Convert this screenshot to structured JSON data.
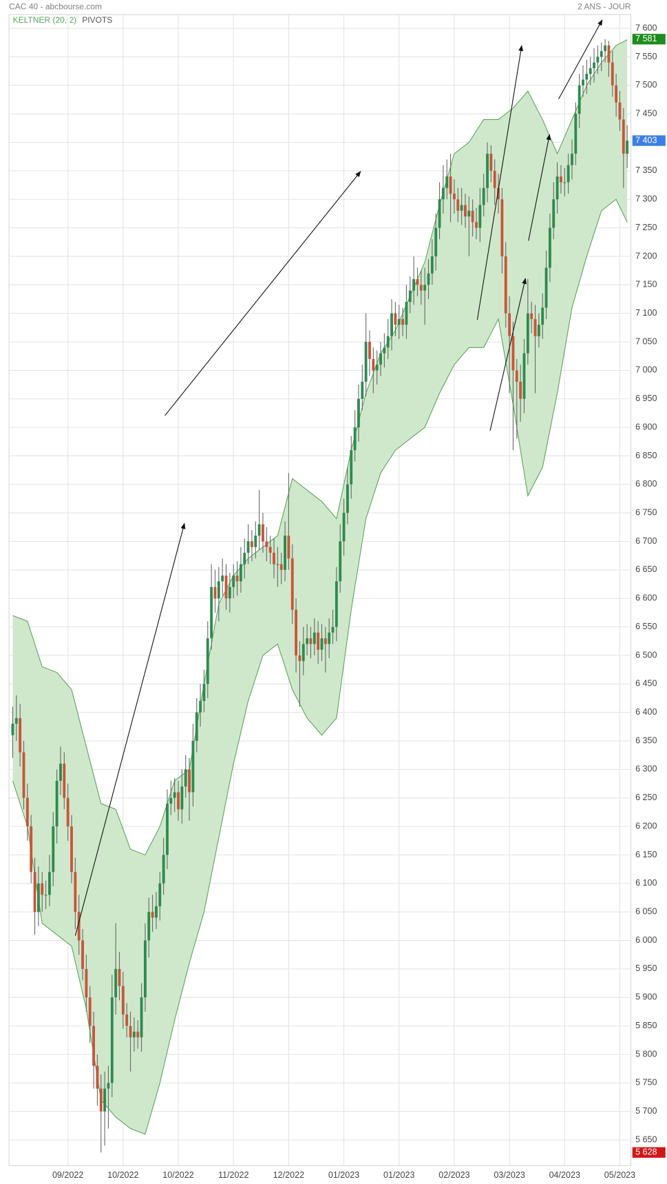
{
  "chart_data": {
    "type": "candlestick",
    "title": "CAC 40 - abcbourse.com",
    "period": "2 ANS - JOUR",
    "pivots_label": "PIVOTS",
    "up_color": "#2e8b4e",
    "down_color": "#c9553a",
    "wick_color": "#666666",
    "grid": true,
    "xlim": [
      -1,
      168
    ],
    "ylim": [
      5605,
      7624
    ],
    "xticks": [
      {
        "value": 15,
        "label": "09/2022"
      },
      {
        "value": 30,
        "label": "10/2022"
      },
      {
        "value": 45,
        "label": "10/2022"
      },
      {
        "value": 60,
        "label": "11/2022"
      },
      {
        "value": 75,
        "label": "12/2022"
      },
      {
        "value": 90,
        "label": "01/2023"
      },
      {
        "value": 105,
        "label": "01/2023"
      },
      {
        "value": 120,
        "label": "02/2023"
      },
      {
        "value": 135,
        "label": "03/2023"
      },
      {
        "value": 150,
        "label": "04/2023"
      },
      {
        "value": 165,
        "label": "05/2023"
      }
    ],
    "yticks": [
      {
        "value": 5650,
        "label": "5 650"
      },
      {
        "value": 5700,
        "label": "5 700"
      },
      {
        "value": 5750,
        "label": "5 750"
      },
      {
        "value": 5800,
        "label": "5 800"
      },
      {
        "value": 5850,
        "label": "5 850"
      },
      {
        "value": 5900,
        "label": "5 900"
      },
      {
        "value": 5950,
        "label": "5 950"
      },
      {
        "value": 6000,
        "label": "6 000"
      },
      {
        "value": 6050,
        "label": "6 050"
      },
      {
        "value": 6100,
        "label": "6 100"
      },
      {
        "value": 6150,
        "label": "6 150"
      },
      {
        "value": 6200,
        "label": "6 200"
      },
      {
        "value": 6250,
        "label": "6 250"
      },
      {
        "value": 6300,
        "label": "6 300"
      },
      {
        "value": 6350,
        "label": "6 350"
      },
      {
        "value": 6400,
        "label": "6 400"
      },
      {
        "value": 6450,
        "label": "6 450"
      },
      {
        "value": 6500,
        "label": "6 500"
      },
      {
        "value": 6550,
        "label": "6 550"
      },
      {
        "value": 6600,
        "label": "6 600"
      },
      {
        "value": 6650,
        "label": "6 650"
      },
      {
        "value": 6700,
        "label": "6 700"
      },
      {
        "value": 6750,
        "label": "6 750"
      },
      {
        "value": 6800,
        "label": "6 800"
      },
      {
        "value": 6850,
        "label": "6 850"
      },
      {
        "value": 6900,
        "label": "6 900"
      },
      {
        "value": 6950,
        "label": "6 950"
      },
      {
        "value": 7000,
        "label": "7 000"
      },
      {
        "value": 7050,
        "label": "7 050"
      },
      {
        "value": 7100,
        "label": "7 100"
      },
      {
        "value": 7150,
        "label": "7 150"
      },
      {
        "value": 7200,
        "label": "7 200"
      },
      {
        "value": 7250,
        "label": "7 250"
      },
      {
        "value": 7300,
        "label": "7 300"
      },
      {
        "value": 7350,
        "label": "7 350"
      },
      {
        "value": 7400,
        "label": "7 400"
      },
      {
        "value": 7450,
        "label": "7 450"
      },
      {
        "value": 7500,
        "label": "7 500"
      },
      {
        "value": 7550,
        "label": "7 550"
      },
      {
        "value": 7600,
        "label": "7 600"
      }
    ],
    "price_labels": [
      {
        "value": 7581,
        "label": "7 581",
        "color": "#1e8c1e"
      },
      {
        "value": 7403,
        "label": "7 403",
        "color": "#3d7ee6"
      },
      {
        "value": 5628,
        "label": "5 628",
        "color": "#d01818"
      }
    ],
    "keltner": {
      "name": "KELTNER (20, 2)",
      "color": "#5ca55c",
      "fill": "#cfe8cb",
      "x": [
        0,
        4,
        8,
        12,
        16,
        20,
        24,
        28,
        32,
        36,
        40,
        44,
        48,
        52,
        56,
        60,
        64,
        68,
        72,
        76,
        80,
        84,
        88,
        92,
        96,
        100,
        104,
        108,
        112,
        116,
        120,
        124,
        128,
        132,
        136,
        140,
        144,
        148,
        152,
        156,
        160,
        164,
        167
      ],
      "upper": [
        6570,
        6560,
        6480,
        6470,
        6440,
        6340,
        6240,
        6230,
        6160,
        6150,
        6200,
        6280,
        6300,
        6450,
        6590,
        6640,
        6670,
        6690,
        6710,
        6810,
        6790,
        6770,
        6740,
        6860,
        6960,
        7030,
        7070,
        7130,
        7190,
        7290,
        7380,
        7400,
        7440,
        7440,
        7460,
        7490,
        7440,
        7380,
        7440,
        7500,
        7540,
        7570,
        7580
      ],
      "lower": [
        6280,
        6200,
        6030,
        6010,
        5990,
        5880,
        5720,
        5690,
        5670,
        5660,
        5750,
        5860,
        5960,
        6050,
        6180,
        6310,
        6420,
        6500,
        6520,
        6440,
        6390,
        6360,
        6390,
        6580,
        6740,
        6820,
        6860,
        6880,
        6900,
        6960,
        7010,
        7040,
        7040,
        7090,
        6940,
        6780,
        6830,
        6960,
        7110,
        7200,
        7280,
        7300,
        7260
      ]
    },
    "open": [
      6360,
      6380,
      6390,
      6330,
      6250,
      6200,
      6120,
      6050,
      6100,
      6080,
      6080,
      6120,
      6200,
      6280,
      6310,
      6250,
      6200,
      6120,
      6050,
      6000,
      5950,
      5900,
      5850,
      5780,
      5740,
      5700,
      5740,
      5750,
      5900,
      5950,
      5920,
      5870,
      5850,
      5830,
      5840,
      5830,
      5900,
      6000,
      6050,
      6040,
      6060,
      6100,
      6150,
      6240,
      6250,
      6260,
      6230,
      6270,
      6300,
      6260,
      6350,
      6400,
      6420,
      6450,
      6530,
      6620,
      6600,
      6630,
      6640,
      6600,
      6620,
      6640,
      6630,
      6660,
      6680,
      6700,
      6690,
      6710,
      6730,
      6700,
      6690,
      6680,
      6660,
      6660,
      6650,
      6710,
      6670,
      6580,
      6500,
      6490,
      6520,
      6530,
      6520,
      6540,
      6510,
      6530,
      6520,
      6540,
      6550,
      6630,
      6700,
      6750,
      6800,
      6860,
      6900,
      6950,
      6980,
      7050,
      7020,
      7000,
      7010,
      7030,
      7040,
      7060,
      7100,
      7080,
      7090,
      7080,
      7120,
      7140,
      7160,
      7150,
      7140,
      7150,
      7170,
      7200,
      7250,
      7300,
      7320,
      7340,
      7310,
      7300,
      7280,
      7290,
      7270,
      7280,
      7260,
      7250,
      7290,
      7320,
      7380,
      7350,
      7320,
      7300,
      7200,
      7100,
      7060,
      7000,
      6980,
      6950,
      7030,
      7100,
      7090,
      7060,
      7080,
      7110,
      7180,
      7250,
      7300,
      7340,
      7330,
      7330,
      7360,
      7380,
      7450,
      7500,
      7510,
      7520,
      7530,
      7540,
      7550,
      7560,
      7570,
      7540,
      7500,
      7470,
      7440,
      7380
    ],
    "high": [
      6410,
      6430,
      6415,
      6350,
      6275,
      6220,
      6145,
      6130,
      6120,
      6105,
      6150,
      6225,
      6300,
      6340,
      6330,
      6275,
      6220,
      6145,
      6080,
      6020,
      5975,
      5920,
      5875,
      5800,
      5765,
      5770,
      5780,
      5940,
      6030,
      5980,
      5945,
      5890,
      5875,
      5865,
      5860,
      5925,
      6030,
      6075,
      6080,
      6085,
      6120,
      6180,
      6265,
      6280,
      6285,
      6280,
      6300,
      6325,
      6320,
      6380,
      6425,
      6450,
      6475,
      6560,
      6660,
      6650,
      6655,
      6670,
      6660,
      6645,
      6660,
      6665,
      6690,
      6705,
      6730,
      6720,
      6735,
      6790,
      6750,
      6725,
      6710,
      6705,
      6690,
      6680,
      6735,
      6820,
      6695,
      6600,
      6525,
      6550,
      6555,
      6550,
      6565,
      6560,
      6555,
      6550,
      6565,
      6580,
      6655,
      6730,
      6775,
      6830,
      6885,
      6930,
      6975,
      7010,
      7100,
      7070,
      7040,
      7035,
      7050,
      7065,
      7090,
      7125,
      7120,
      7115,
      7110,
      7150,
      7165,
      7200,
      7180,
      7175,
      7180,
      7195,
      7230,
      7275,
      7330,
      7360,
      7370,
      7380,
      7335,
      7320,
      7320,
      7310,
      7305,
      7300,
      7285,
      7320,
      7345,
      7400,
      7395,
      7370,
      7345,
      7320,
      7225,
      7130,
      7085,
      7020,
      7010,
      7055,
      7160,
      7120,
      7115,
      7100,
      7135,
      7210,
      7275,
      7330,
      7365,
      7360,
      7355,
      7380,
      7405,
      7470,
      7520,
      7535,
      7545,
      7550,
      7565,
      7570,
      7575,
      7581,
      7578,
      7560,
      7520,
      7490,
      7460,
      7430
    ],
    "low": [
      6320,
      6350,
      6305,
      6230,
      6175,
      6100,
      6010,
      6025,
      6050,
      6055,
      6060,
      6095,
      6170,
      6255,
      6230,
      6175,
      6100,
      6020,
      5975,
      5930,
      5875,
      5820,
      5740,
      5710,
      5628,
      5640,
      5670,
      5725,
      5870,
      5895,
      5845,
      5830,
      5770,
      5805,
      5810,
      5805,
      5875,
      5970,
      6015,
      6020,
      6035,
      6080,
      6125,
      6220,
      6225,
      6210,
      6205,
      6250,
      6210,
      6235,
      6330,
      6375,
      6400,
      6425,
      6510,
      6575,
      6560,
      6605,
      6580,
      6575,
      6600,
      6605,
      6610,
      6635,
      6660,
      6665,
      6670,
      6685,
      6680,
      6665,
      6660,
      6635,
      6620,
      6625,
      6630,
      6650,
      6555,
      6470,
      6410,
      6465,
      6500,
      6495,
      6500,
      6485,
      6490,
      6470,
      6495,
      6520,
      6525,
      6610,
      6675,
      6730,
      6775,
      6840,
      6875,
      6930,
      6955,
      6990,
      6960,
      6975,
      6990,
      7005,
      7020,
      7035,
      7060,
      7055,
      7060,
      7055,
      7100,
      7115,
      7130,
      7115,
      7080,
      7125,
      7150,
      7175,
      7230,
      7275,
      7300,
      7260,
      7275,
      7260,
      7255,
      7250,
      7200,
      7235,
      7230,
      7225,
      7270,
      7295,
      7330,
      7290,
      7275,
      7170,
      7075,
      6960,
      6860,
      6880,
      6910,
      6925,
      7010,
      7065,
      6960,
      7040,
      7055,
      7090,
      7155,
      7230,
      7275,
      7310,
      7305,
      7310,
      7335,
      7360,
      7425,
      7480,
      7485,
      7500,
      7505,
      7520,
      7525,
      7540,
      7515,
      7480,
      7445,
      7420,
      7320,
      7355
    ],
    "close": [
      6380,
      6390,
      6330,
      6250,
      6200,
      6120,
      6050,
      6100,
      6080,
      6080,
      6120,
      6200,
      6280,
      6310,
      6250,
      6200,
      6120,
      6050,
      6000,
      5950,
      5900,
      5850,
      5780,
      5740,
      5700,
      5740,
      5750,
      5900,
      5950,
      5920,
      5870,
      5850,
      5830,
      5840,
      5830,
      5900,
      6000,
      6050,
      6040,
      6060,
      6100,
      6150,
      6240,
      6250,
      6260,
      6230,
      6270,
      6300,
      6260,
      6350,
      6400,
      6420,
      6450,
      6530,
      6620,
      6600,
      6630,
      6640,
      6600,
      6620,
      6640,
      6630,
      6660,
      6680,
      6700,
      6690,
      6710,
      6730,
      6700,
      6690,
      6680,
      6660,
      6660,
      6650,
      6710,
      6670,
      6580,
      6500,
      6490,
      6520,
      6530,
      6520,
      6540,
      6510,
      6530,
      6520,
      6540,
      6550,
      6630,
      6700,
      6750,
      6800,
      6860,
      6900,
      6950,
      6980,
      7050,
      7020,
      7000,
      7010,
      7030,
      7040,
      7060,
      7100,
      7080,
      7090,
      7080,
      7120,
      7140,
      7160,
      7150,
      7140,
      7150,
      7170,
      7200,
      7250,
      7300,
      7320,
      7340,
      7310,
      7300,
      7280,
      7290,
      7270,
      7280,
      7260,
      7250,
      7290,
      7320,
      7380,
      7350,
      7320,
      7300,
      7200,
      7100,
      7060,
      7000,
      6980,
      6950,
      7030,
      7100,
      7090,
      7060,
      7080,
      7110,
      7180,
      7250,
      7300,
      7340,
      7330,
      7330,
      7360,
      7380,
      7450,
      7500,
      7510,
      7520,
      7530,
      7540,
      7550,
      7560,
      7570,
      7540,
      7500,
      7470,
      7440,
      7380,
      7403
    ]
  }
}
